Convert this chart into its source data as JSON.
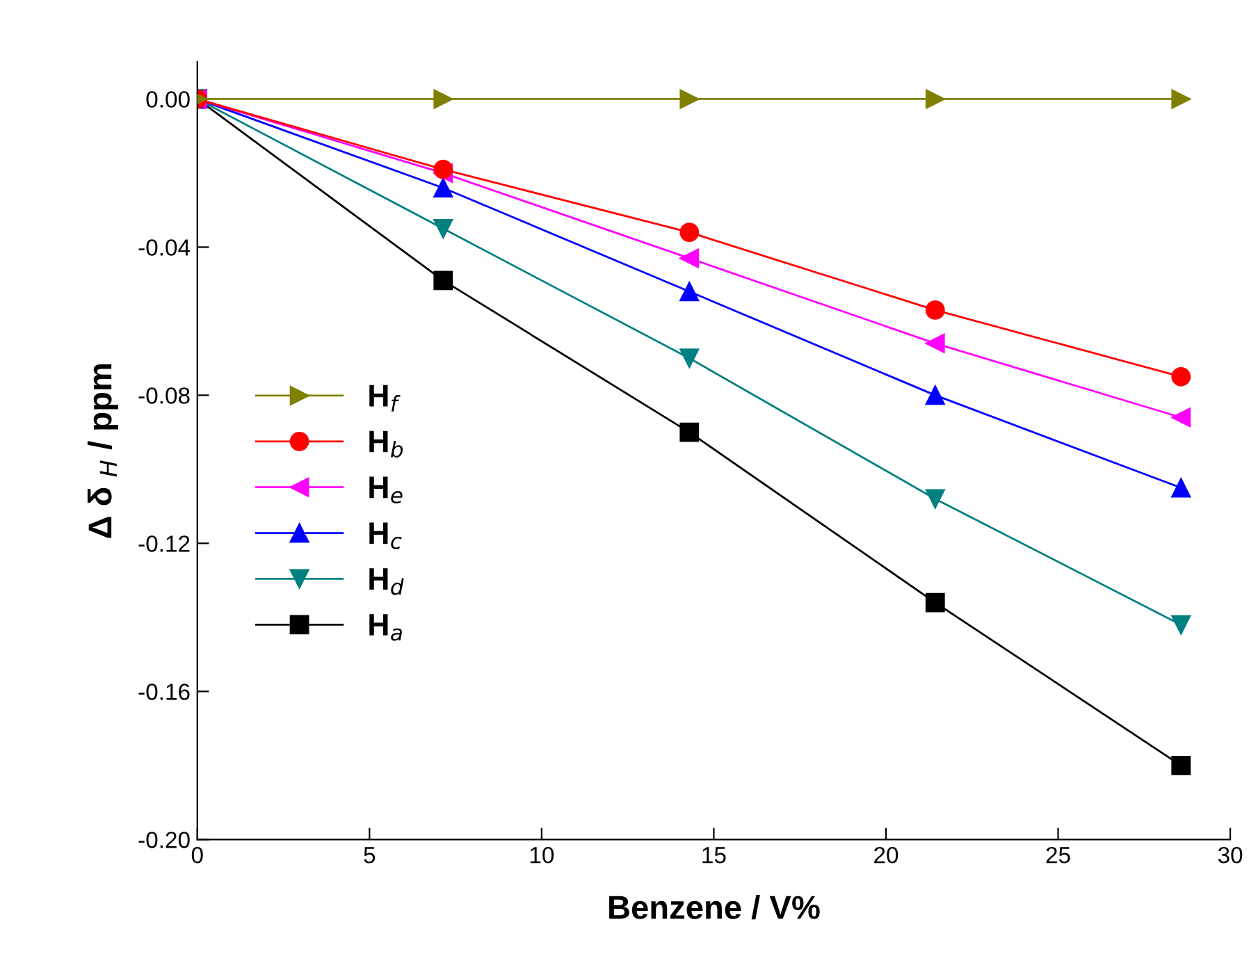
{
  "chart_data": {
    "type": "line",
    "xlabel": "Benzene / V%",
    "ylabel": "Δ δ $_{H}$ / ppm",
    "xlim": [
      0,
      30
    ],
    "xticks": [
      0,
      5,
      10,
      15,
      20,
      25,
      30
    ],
    "ylim": [
      -0.2,
      0.01
    ],
    "yticks": [
      {
        "value": -0.2,
        "label": "-0.20"
      },
      {
        "value": -0.16,
        "label": "-0.16"
      },
      {
        "value": -0.12,
        "label": "-0.12"
      },
      {
        "value": -0.08,
        "label": "-0.08"
      },
      {
        "value": -0.04,
        "label": "-0.04"
      },
      {
        "value": 0,
        "label": "0.00"
      }
    ],
    "grid": false,
    "legend": "left",
    "line_style": "solid",
    "x": [
      0,
      7.14,
      14.29,
      21.43,
      28.57
    ],
    "series": [
      {
        "name": "H$_{f}$",
        "color": "#808000",
        "marker": "triangle-right",
        "values": [
          0,
          0,
          0,
          0,
          0
        ]
      },
      {
        "name": "H$_{b}$",
        "color": "#ff0000",
        "marker": "circle",
        "values": [
          0,
          -0.019,
          -0.036,
          -0.057,
          -0.075
        ]
      },
      {
        "name": "H$_{e}$",
        "color": "#ff00ff",
        "marker": "triangle-left",
        "values": [
          0,
          -0.02,
          -0.043,
          -0.066,
          -0.086
        ]
      },
      {
        "name": "H$_{c}$",
        "color": "#0000ff",
        "marker": "triangle",
        "values": [
          0,
          -0.024,
          -0.052,
          -0.08,
          -0.105
        ]
      },
      {
        "name": "H$_{d}$",
        "color": "#008080",
        "marker": "triangle-down",
        "values": [
          0,
          -0.035,
          -0.07,
          -0.108,
          -0.142
        ]
      },
      {
        "name": "H$_{a}$",
        "color": "#000000",
        "marker": "square",
        "values": [
          0,
          -0.049,
          -0.09,
          -0.136,
          -0.18
        ]
      }
    ]
  }
}
